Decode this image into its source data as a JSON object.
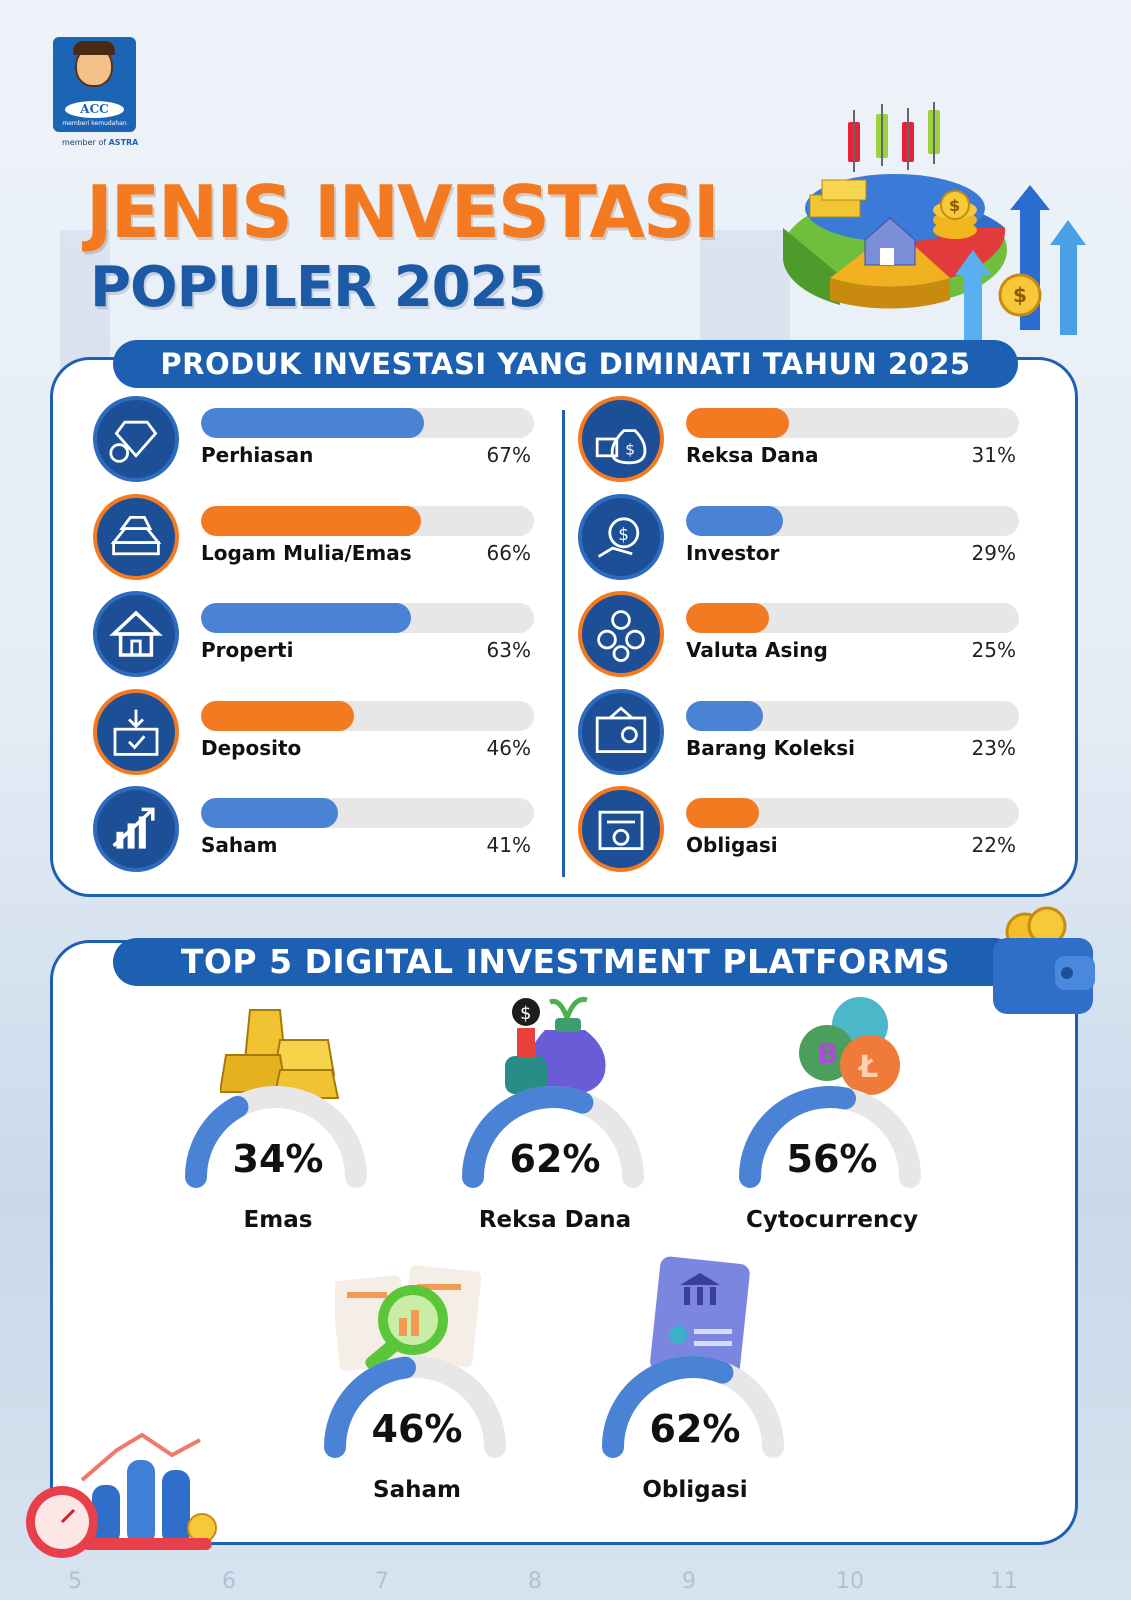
{
  "logo": {
    "brand": "ACC",
    "tagline": "memberi kemudahan",
    "member_of": "member of",
    "member_brand": "ASTRA"
  },
  "title": {
    "line1": "JENIS INVESTASI",
    "line2": "POPULER 2025"
  },
  "section1": {
    "banner": "PRODUK INVESTASI YANG DIMINATI TAHUN 2025",
    "left": [
      {
        "label": "Perhiasan",
        "pct": "67%",
        "value": 67,
        "color": "blue",
        "icon": "jewelry-icon"
      },
      {
        "label": "Logam Mulia/Emas",
        "pct": "66%",
        "value": 66,
        "color": "orange",
        "icon": "gold-bars-icon"
      },
      {
        "label": "Properti",
        "pct": "63%",
        "value": 63,
        "color": "blue",
        "icon": "house-icon"
      },
      {
        "label": "Deposito",
        "pct": "46%",
        "value": 46,
        "color": "orange",
        "icon": "deposit-icon"
      },
      {
        "label": "Saham",
        "pct": "41%",
        "value": 41,
        "color": "blue",
        "icon": "stock-chart-icon"
      }
    ],
    "right": [
      {
        "label": "Reksa Dana",
        "pct": "31%",
        "value": 31,
        "color": "orange",
        "icon": "money-bag-icon"
      },
      {
        "label": "Investor",
        "pct": "29%",
        "value": 29,
        "color": "blue",
        "icon": "investor-icon"
      },
      {
        "label": "Valuta Asing",
        "pct": "25%",
        "value": 25,
        "color": "orange",
        "icon": "currency-exchange-icon"
      },
      {
        "label": "Barang Koleksi",
        "pct": "23%",
        "value": 23,
        "color": "blue",
        "icon": "painting-icon"
      },
      {
        "label": "Obligasi",
        "pct": "22%",
        "value": 22,
        "color": "orange",
        "icon": "bond-certificate-icon"
      }
    ]
  },
  "section2": {
    "banner": "TOP 5 DIGITAL INVESTMENT PLATFORMS",
    "gauges": [
      {
        "label": "Emas",
        "pct": "34%",
        "value": 34,
        "icon": "gold-bars-icon"
      },
      {
        "label": "Reksa Dana",
        "pct": "62%",
        "value": 62,
        "icon": "money-bag-plant-icon"
      },
      {
        "label": "Cytocurrency",
        "pct": "56%",
        "value": 56,
        "icon": "crypto-coins-icon"
      },
      {
        "label": "Saham",
        "pct": "46%",
        "value": 46,
        "icon": "magnifier-report-icon"
      },
      {
        "label": "Obligasi",
        "pct": "62%",
        "value": 62,
        "icon": "bank-document-icon"
      }
    ]
  },
  "colors": {
    "blue": "#1d5fb0",
    "bar_blue": "#4a82d6",
    "orange": "#f47a22",
    "track": "#e7e7e7"
  },
  "background_axis": [
    "5",
    "6",
    "7",
    "8",
    "9",
    "10",
    "11"
  ]
}
